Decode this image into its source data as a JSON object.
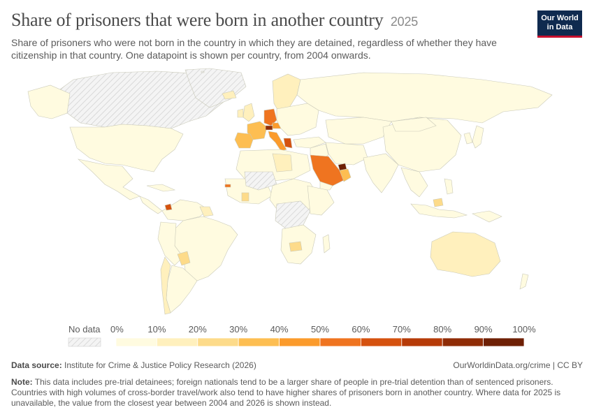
{
  "header": {
    "title": "Share of prisoners that were born in another country",
    "year": "2025",
    "subtitle": "Share of prisoners who were not born in the country in which they are detained, regardless of whether they have citizenship in that country. One datapoint is shown per country, from 2004 onwards."
  },
  "logo": {
    "line1": "Our World",
    "line2": "in Data"
  },
  "legend": {
    "no_data_label": "No data",
    "ticks": [
      "0%",
      "10%",
      "20%",
      "30%",
      "40%",
      "50%",
      "60%",
      "70%",
      "80%",
      "90%",
      "100%"
    ],
    "colors": [
      "#fffbe0",
      "#fff0bd",
      "#fddb8a",
      "#fdbe52",
      "#fb9b2c",
      "#ef7420",
      "#d5520f",
      "#b63b08",
      "#8f2c06",
      "#6e2005"
    ],
    "no_data_color": "#e8e8e8"
  },
  "footer": {
    "source_label": "Data source:",
    "source_text": "Institute for Crime & Justice Policy Research (2026)",
    "link_text": "OurWorldinData.org/crime | CC BY",
    "note_label": "Note:",
    "note_text": "This data includes pre-trial detainees; foreign nationals tend to be a larger share of people in pre-trial detention than of sentenced prisoners. Countries with high volumes of cross-border travel/work also tend to have higher shares of prisoners born in another country. Where data for 2025 is unavailable, the value from the closest year between 2004 and 2026 is shown instead."
  }
}
